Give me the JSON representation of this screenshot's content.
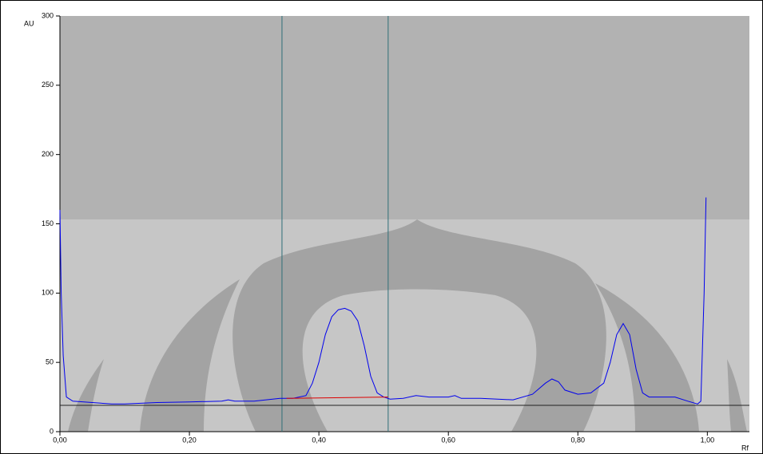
{
  "chart_data": {
    "type": "line",
    "y_label": "AU",
    "x_label": "Rf",
    "xlim": [
      0,
      1.065
    ],
    "ylim": [
      0,
      300
    ],
    "xticks": [
      {
        "value": 0,
        "label": "0,00"
      },
      {
        "value": 0.2,
        "label": "0,20"
      },
      {
        "value": 0.4,
        "label": "0,40"
      },
      {
        "value": 0.6,
        "label": "0,60"
      },
      {
        "value": 0.8,
        "label": "0,80"
      },
      {
        "value": 1.0,
        "label": "1,00"
      }
    ],
    "yticks": [
      0,
      50,
      100,
      150,
      200,
      250,
      300
    ],
    "markers": [
      0.343,
      0.507
    ],
    "baseline": 19,
    "series": [
      {
        "color": "#0000ee",
        "x": [
          0,
          0.002,
          0.005,
          0.01,
          0.02,
          0.05,
          0.08,
          0.1,
          0.15,
          0.2,
          0.25,
          0.26,
          0.27,
          0.3,
          0.34,
          0.36,
          0.38,
          0.39,
          0.4,
          0.41,
          0.42,
          0.43,
          0.44,
          0.45,
          0.46,
          0.47,
          0.48,
          0.49,
          0.5,
          0.51,
          0.53,
          0.55,
          0.57,
          0.6,
          0.61,
          0.62,
          0.65,
          0.7,
          0.73,
          0.75,
          0.76,
          0.77,
          0.78,
          0.8,
          0.82,
          0.84,
          0.85,
          0.86,
          0.87,
          0.88,
          0.89,
          0.9,
          0.91,
          0.95,
          0.97,
          0.985,
          0.99,
          0.995,
          0.998
        ],
        "values": [
          160,
          100,
          55,
          25,
          22,
          21,
          20,
          20,
          21,
          21.5,
          22,
          23,
          22,
          22,
          24,
          24,
          26,
          35,
          50,
          70,
          83,
          88,
          89,
          87,
          80,
          62,
          40,
          28,
          25,
          23.5,
          24,
          26,
          25,
          25,
          26,
          24,
          24,
          23,
          27,
          35,
          38,
          36,
          30,
          27,
          28,
          35,
          50,
          70,
          78,
          70,
          45,
          28,
          25,
          25,
          22,
          20,
          22,
          100,
          169
        ]
      },
      {
        "color": "#dd0000",
        "x": [
          0.35,
          0.507
        ],
        "values": [
          24,
          25
        ]
      }
    ]
  }
}
